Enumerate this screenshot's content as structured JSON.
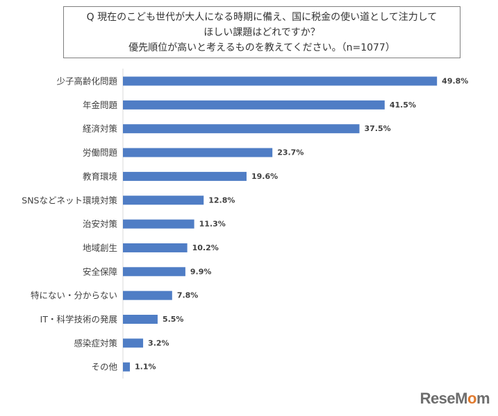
{
  "question": {
    "line1": "Q 現在のこども世代が大人になる時期に備え、国に税金の使い道として注力して",
    "line2": "ほしい課題はどれですか？",
    "line3": "優先順位が高いと考えるものを教えてください。（n=1077）"
  },
  "chart_data": {
    "type": "bar",
    "orientation": "horizontal",
    "categories": [
      "少子高齢化問題",
      "年金問題",
      "経済対策",
      "労働問題",
      "教育環境",
      "SNSなどネット環境対策",
      "治安対策",
      "地域創生",
      "安全保障",
      "特にない・分からない",
      "IT・科学技術の発展",
      "感染症対策",
      "その他"
    ],
    "values": [
      49.8,
      41.5,
      37.5,
      23.7,
      19.6,
      12.8,
      11.3,
      10.2,
      9.9,
      7.8,
      5.5,
      3.2,
      1.1
    ],
    "value_labels": [
      "49.8%",
      "41.5%",
      "37.5%",
      "23.7%",
      "19.6%",
      "12.8%",
      "11.3%",
      "10.2%",
      "9.9%",
      "7.8%",
      "5.5%",
      "3.2%",
      "1.1%"
    ],
    "xlim": [
      0,
      55
    ],
    "grid": false,
    "bar_color": "#4f7dc5",
    "axis_color": "#d9d9d9"
  },
  "logo": {
    "before": "ReseM",
    "o": "o",
    "after": "m"
  }
}
